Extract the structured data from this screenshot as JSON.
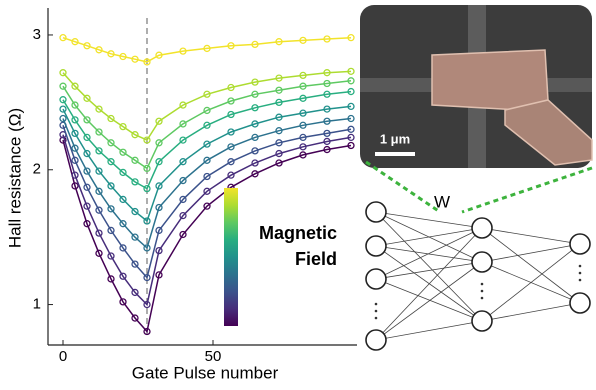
{
  "chart_data": {
    "type": "line",
    "x_label": "Gate Pulse number",
    "y_label": "Hall resistance (Ω)",
    "x": [
      0,
      4,
      8,
      12,
      16,
      20,
      24,
      28,
      32,
      40,
      48,
      56,
      64,
      72,
      80,
      88,
      96
    ],
    "xlim": [
      -5,
      98
    ],
    "xticks": [
      0,
      50
    ],
    "ylim": [
      0.7,
      3.2
    ],
    "yticks": [
      1,
      2,
      3
    ],
    "vlines": [
      28
    ],
    "series": [
      {
        "color": "#440154",
        "values": [
          2.22,
          1.88,
          1.6,
          1.38,
          1.19,
          1.02,
          0.9,
          0.8,
          1.22,
          1.52,
          1.73,
          1.87,
          1.97,
          2.05,
          2.11,
          2.15,
          2.18
        ]
      },
      {
        "color": "#472d7b",
        "values": [
          2.26,
          1.96,
          1.73,
          1.53,
          1.36,
          1.21,
          1.09,
          1.0,
          1.4,
          1.66,
          1.84,
          1.96,
          2.05,
          2.12,
          2.17,
          2.21,
          2.24
        ]
      },
      {
        "color": "#3b528b",
        "values": [
          2.33,
          2.07,
          1.87,
          1.7,
          1.55,
          1.42,
          1.3,
          1.2,
          1.55,
          1.78,
          1.95,
          2.06,
          2.14,
          2.2,
          2.24,
          2.27,
          2.3
        ]
      },
      {
        "color": "#2c728e",
        "values": [
          2.38,
          2.16,
          1.99,
          1.84,
          1.71,
          1.6,
          1.5,
          1.42,
          1.72,
          1.92,
          2.07,
          2.17,
          2.24,
          2.29,
          2.33,
          2.36,
          2.38
        ]
      },
      {
        "color": "#21918c",
        "values": [
          2.45,
          2.27,
          2.12,
          1.99,
          1.88,
          1.78,
          1.69,
          1.62,
          1.88,
          2.06,
          2.19,
          2.28,
          2.34,
          2.39,
          2.42,
          2.45,
          2.47
        ]
      },
      {
        "color": "#28ae80",
        "values": [
          2.52,
          2.37,
          2.24,
          2.14,
          2.06,
          1.98,
          1.91,
          1.86,
          2.06,
          2.22,
          2.33,
          2.41,
          2.46,
          2.5,
          2.53,
          2.56,
          2.58
        ]
      },
      {
        "color": "#5ec962",
        "values": [
          2.62,
          2.48,
          2.37,
          2.28,
          2.2,
          2.13,
          2.07,
          2.01,
          2.2,
          2.34,
          2.44,
          2.51,
          2.56,
          2.59,
          2.62,
          2.64,
          2.66
        ]
      },
      {
        "color": "#addc30",
        "values": [
          2.72,
          2.62,
          2.53,
          2.45,
          2.38,
          2.32,
          2.26,
          2.22,
          2.36,
          2.48,
          2.56,
          2.61,
          2.65,
          2.68,
          2.7,
          2.72,
          2.73
        ]
      },
      {
        "color": "#f2e32a",
        "values": [
          2.98,
          2.95,
          2.92,
          2.89,
          2.86,
          2.84,
          2.82,
          2.8,
          2.85,
          2.88,
          2.9,
          2.92,
          2.93,
          2.95,
          2.96,
          2.97,
          2.98
        ]
      }
    ],
    "colorbar_label": [
      "Magnetic",
      "Field"
    ]
  },
  "inset": {
    "scale_bar": "1 μm"
  },
  "network": {
    "weight_label": "W"
  }
}
